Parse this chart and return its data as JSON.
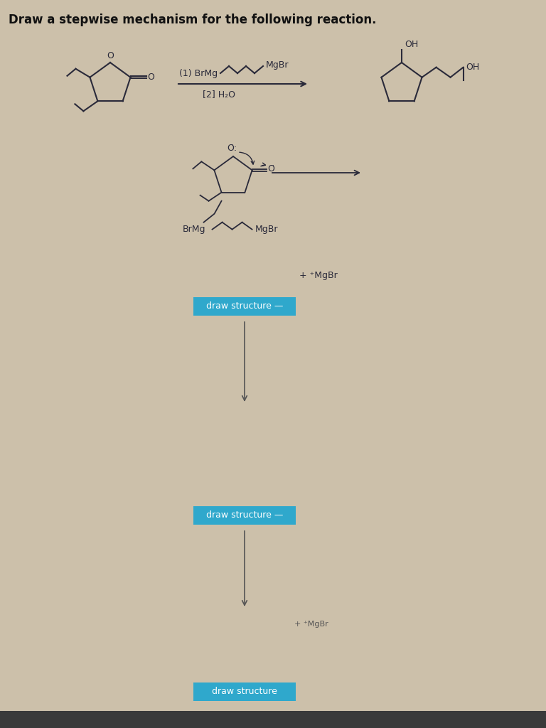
{
  "title": "Draw a stepwise mechanism for the following reaction.",
  "bg_color": "#ccc0aa",
  "title_color": "#111111",
  "title_fontsize": 12,
  "struct_color": "#2a2a3a",
  "reaction_label_1": "(1) BrMg",
  "reaction_label_2": "[2] H₂O",
  "brmg_label": "BrMg",
  "mgbr_label_top": "MgBr",
  "mgbr_label_step": "MgBr",
  "mgbr_plus": "+ ⁺MgBr",
  "draw_structure_color": "#2fa8cc",
  "draw_structure_text": "draw structure —",
  "draw_structure_text2": "draw structure —",
  "draw_structure_text3": "draw structure",
  "oh_label": "OH",
  "oh_label2": "OH",
  "arrow_color": "#2a2a3a",
  "wavy_color": "#2a2a3a"
}
